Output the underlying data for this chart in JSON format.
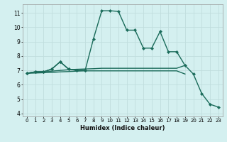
{
  "xlabel": "Humidex (Indice chaleur)",
  "x": [
    0,
    1,
    2,
    3,
    4,
    5,
    6,
    7,
    8,
    9,
    10,
    11,
    12,
    13,
    14,
    15,
    16,
    17,
    18,
    19,
    20,
    21,
    22,
    23
  ],
  "line_main": [
    6.8,
    6.9,
    6.9,
    7.1,
    7.6,
    7.1,
    7.0,
    7.0,
    9.2,
    11.15,
    11.15,
    11.1,
    9.8,
    9.8,
    8.55,
    8.55,
    9.7,
    8.3,
    8.3,
    7.35,
    6.75,
    5.4,
    4.65,
    4.45
  ],
  "line_bump": [
    6.8,
    6.9,
    6.9,
    7.1,
    7.6,
    7.1,
    7.0,
    7.0,
    null,
    null,
    null,
    null,
    null,
    null,
    null,
    null,
    null,
    null,
    null,
    null,
    null,
    null,
    null,
    null
  ],
  "line_flat_high": [
    6.8,
    6.9,
    6.92,
    6.95,
    7.0,
    7.05,
    7.08,
    7.1,
    7.12,
    7.15,
    7.15,
    7.15,
    7.15,
    7.15,
    7.15,
    7.15,
    7.15,
    7.15,
    7.15,
    7.35,
    null,
    null,
    null,
    null
  ],
  "line_flat_low": [
    6.8,
    6.82,
    6.84,
    6.86,
    6.9,
    6.92,
    6.95,
    6.97,
    6.97,
    6.97,
    6.97,
    6.97,
    6.97,
    6.97,
    6.97,
    6.97,
    6.97,
    6.97,
    6.97,
    6.75,
    null,
    null,
    null,
    null
  ],
  "xlim": [
    -0.5,
    23.5
  ],
  "ylim": [
    3.8,
    11.6
  ],
  "yticks": [
    4,
    5,
    6,
    7,
    8,
    9,
    10,
    11
  ],
  "xticks": [
    0,
    1,
    2,
    3,
    4,
    5,
    6,
    7,
    8,
    9,
    10,
    11,
    12,
    13,
    14,
    15,
    16,
    17,
    18,
    19,
    20,
    21,
    22,
    23
  ],
  "bg_color": "#d4f0f0",
  "grid_color": "#c0dede",
  "line_color": "#1a6b5a",
  "line_width": 1.0,
  "marker": "D",
  "marker_size": 2.2
}
